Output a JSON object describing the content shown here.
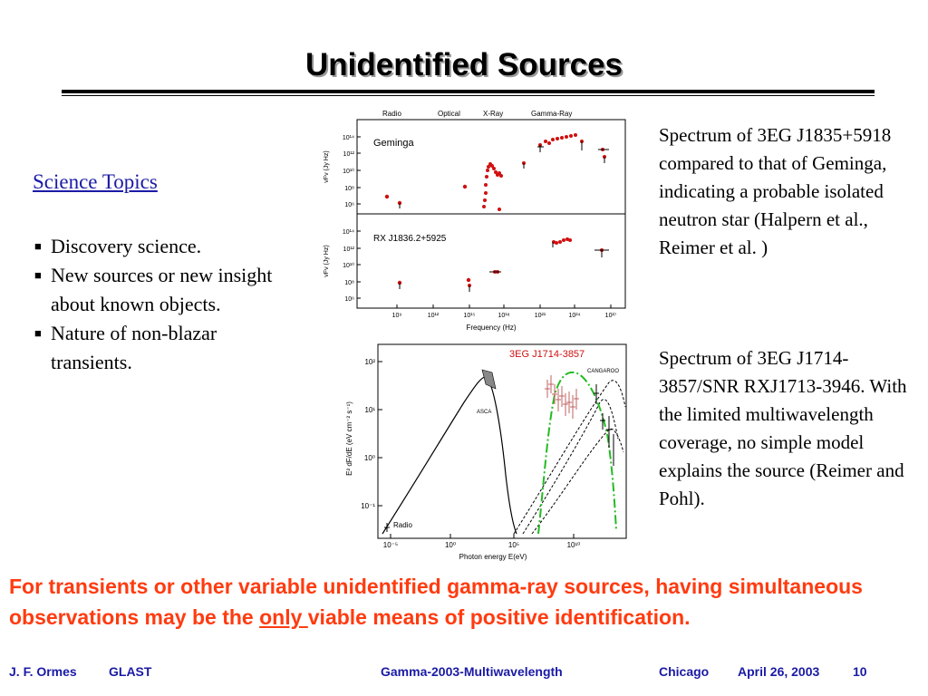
{
  "title": "Unidentified Sources",
  "science": {
    "heading": "Science Topics",
    "items": [
      "Discovery science.",
      "New sources or new insight about known objects.",
      "Nature of non-blazar transients."
    ]
  },
  "fig1": {
    "bands": [
      "Radio",
      "Optical",
      "X-Ray",
      "Gamma-Ray"
    ],
    "top_label": "Geminga",
    "bottom_label": "RX J1836.2+5925",
    "ylabel": "νFν (Jy Hz)",
    "ytick_labels_top": [
      "10¹⁴",
      "10¹²",
      "10¹⁰",
      "10⁸",
      "10⁶"
    ],
    "ytick_labels_bottom": [
      "10¹⁴",
      "10¹²",
      "10¹⁰",
      "10⁸",
      "10⁶"
    ],
    "xtick_labels": [
      "10⁹",
      "10¹²",
      "10¹⁵",
      "10¹⁸",
      "10²¹",
      "10²⁴",
      "10²⁷"
    ],
    "xlabel": "Frequency (Hz)"
  },
  "fig2": {
    "source_label": "3EG J1714-3857",
    "cangaroo_label": "CANGAROO",
    "asca_label": "ASCA",
    "radio_label": "Radio",
    "ylabel": "E² dF/dE (eV cm⁻² s⁻¹)",
    "ytick_labels": [
      "10²",
      "10¹",
      "10⁰",
      "10⁻¹"
    ],
    "xtick_labels": [
      "10⁻⁵",
      "10⁰",
      "10⁵",
      "10¹⁰"
    ],
    "xlabel": "Photon energy  E(eV)"
  },
  "desc1": "Spectrum of 3EG J1835+5918 compared to that of Geminga, indicating a probable isolated neutron star (Halpern et al., Reimer et al. )",
  "desc2": "Spectrum of 3EG J1714-3857/SNR RXJ1713-3946. With the limited multiwavelength coverage, no simple model explains the source (Reimer and Pohl).",
  "bottom_note": {
    "before": "For transients or other variable unidentified gamma-ray sources, having simultaneous observations may be the ",
    "underlined": "only ",
    "after": "viable means of positive identification."
  },
  "footer": {
    "author": "J. F. Ormes",
    "org": "GLAST",
    "conference": "Gamma-2003-Multiwavelength",
    "city": "Chicago",
    "date": "April 26, 2003",
    "page": "10"
  },
  "colors": {
    "title_shadow": "#9a9a9a",
    "link_blue": "#1a1aa6",
    "note_orange": "#ff3b10",
    "data_red": "#d01010",
    "model_green": "#22bb22"
  }
}
